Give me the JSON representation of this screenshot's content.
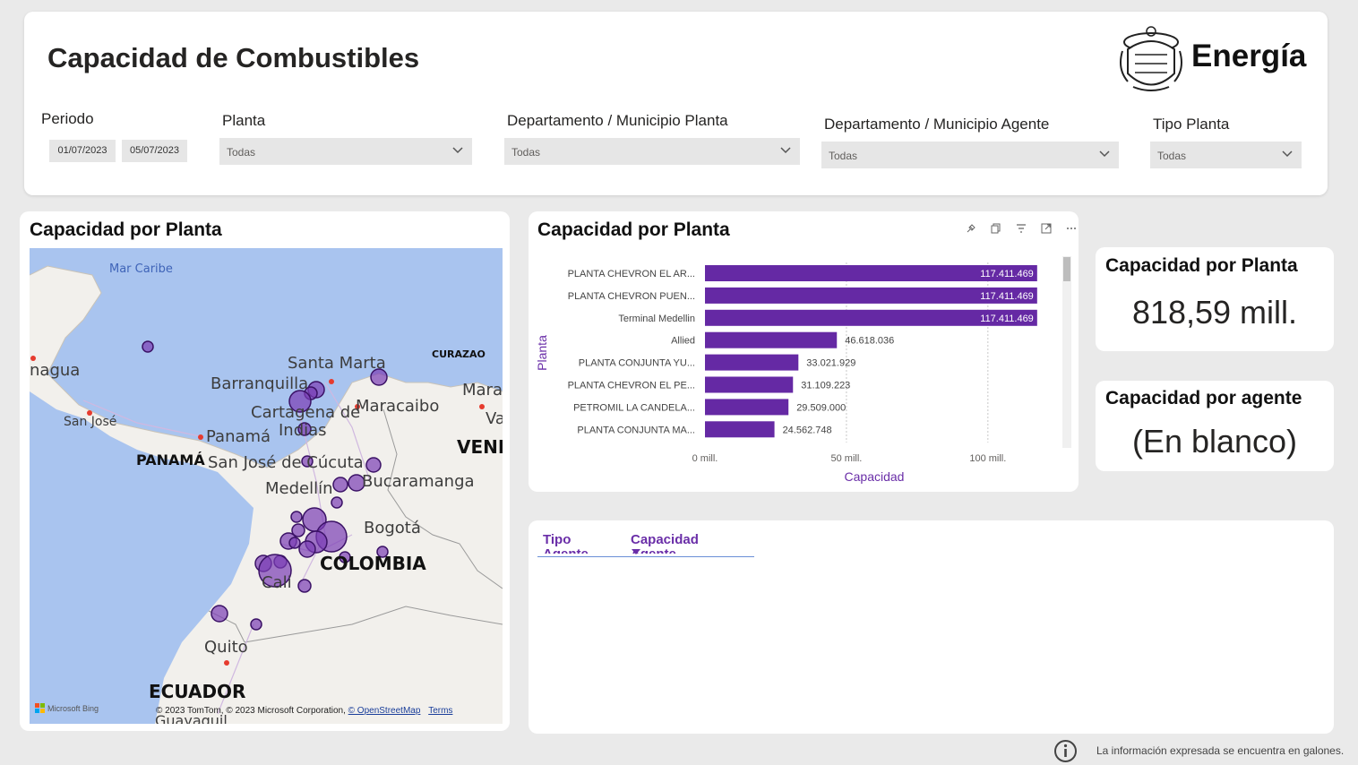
{
  "header": {
    "title": "Capacidad de Combustibles",
    "brand": "Energía"
  },
  "filters": {
    "periodo": {
      "label": "Periodo",
      "start": "01/07/2023",
      "end": "05/07/2023"
    },
    "planta": {
      "label": "Planta",
      "value": "Todas"
    },
    "depto_planta": {
      "label": "Departamento / Municipio Planta",
      "value": "Todas"
    },
    "depto_agente": {
      "label": "Departamento / Municipio Agente",
      "value": "Todas"
    },
    "tipo_planta": {
      "label": "Tipo Planta",
      "value": "Todas"
    }
  },
  "map": {
    "title": "Capacidad por Planta",
    "labels": {
      "mar_caribe": "Mar Caribe",
      "nagua": "nagua",
      "santa_marta": "Santa Marta",
      "curazao": "CURAZAO",
      "barranquilla": "Barranquilla",
      "mara": "Mara",
      "cartagena": "Cartagena de",
      "indias": "Indias",
      "maracaibo": "Maracaibo",
      "va": "Va",
      "san_jose": "San José",
      "panama_city": "Panamá",
      "panama": "PANAMÁ",
      "san_jose_cucuta": "San José de Cúcuta",
      "vene": "VENE",
      "medellin": "Medellín",
      "bucaramanga": "Bucaramanga",
      "bogota": "Bogotá",
      "colombia": "COLOMBIA",
      "cali": "Cali",
      "quito": "Quito",
      "ecuador": "ECUADOR",
      "guayaquil": "Guayaquil"
    },
    "attribution": "© 2023 TomTom, © 2023 Microsoft Corporation,",
    "osm_link": "© OpenStreetMap",
    "terms_link": "Terms",
    "provider": "Microsoft Bing"
  },
  "bar_visual": {
    "title": "Capacidad por Planta",
    "toolbar_icons": [
      "pin-icon",
      "copy-icon",
      "filter-icon",
      "focus-icon",
      "more-options-icon"
    ]
  },
  "chart_data": {
    "type": "bar",
    "orientation": "horizontal",
    "categories": [
      "PLANTA CHEVRON EL AR...",
      "PLANTA CHEVRON PUEN...",
      "Terminal Medellin",
      "Allied",
      "PLANTA CONJUNTA YU...",
      "PLANTA CHEVRON EL PE...",
      "PETROMIL LA CANDELA...",
      "PLANTA CONJUNTA MA..."
    ],
    "values": [
      117411469,
      117411469,
      117411469,
      46618036,
      33021929,
      31109223,
      29509000,
      24562748
    ],
    "data_labels": [
      "117.411.469",
      "117.411.469",
      "117.411.469",
      "46.618.036",
      "33.021.929",
      "31.109.223",
      "29.509.000",
      "24.562.748"
    ],
    "xlabel": "Capacidad",
    "ylabel": "Planta",
    "xticks": [
      0,
      50000000,
      100000000
    ],
    "xtick_labels": [
      "0 mill.",
      "50 mill.",
      "100 mill."
    ],
    "xlim": [
      0,
      120000000
    ],
    "bar_color": "#6529a4",
    "grid": true
  },
  "kpis": {
    "planta": {
      "title": "Capacidad por Planta",
      "value": "818,59 mill."
    },
    "agente": {
      "title": "Capacidad por agente",
      "value": "(En blanco)"
    }
  },
  "table": {
    "headers": [
      "Tipo Agente",
      "Capacidad Agente"
    ]
  },
  "footer": {
    "note": "La información expresada se encuentra en galones."
  },
  "colors": {
    "accent": "#6a2ea8",
    "bubble": "#7a3db5",
    "map_water": "#a9c4ef",
    "map_land": "#f2f0ec"
  }
}
